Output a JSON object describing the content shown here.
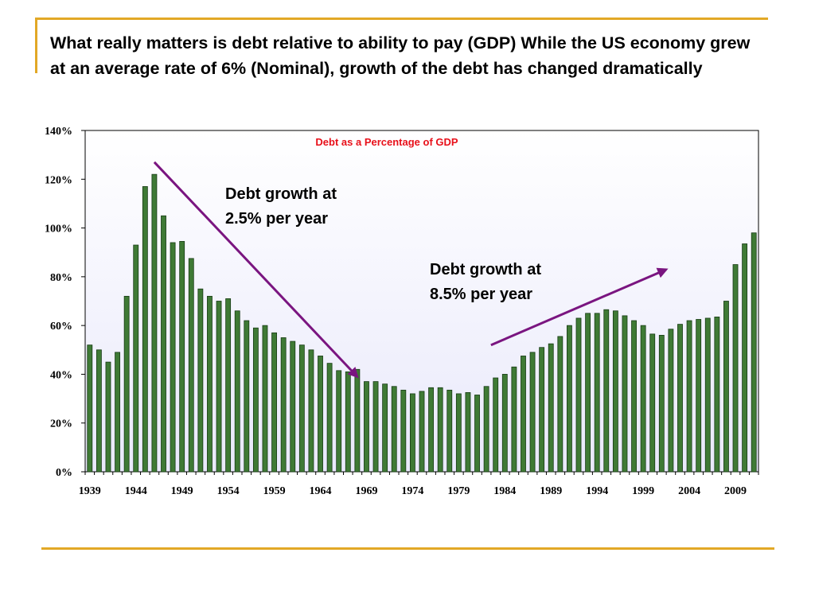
{
  "slide": {
    "title": "What really matters is debt relative to ability to pay (GDP) While the US economy grew at an average rate of 6% (Nominal), growth of the debt has changed dramatically"
  },
  "colors": {
    "accent_rule": "#e2a826",
    "bar_fill": "#3f7a35",
    "bar_stroke": "#173b14",
    "chart_title": "#e8101a",
    "arrow": "#7a1580",
    "plot_bg_top": "#ffffff",
    "plot_bg_bottom": "#e9e9fb"
  },
  "annotations": [
    {
      "lines": [
        "Debt growth at",
        "2.5% per year"
      ],
      "arrow_from_year": 1946,
      "arrow_from_value": 1.27,
      "arrow_to_year": 1968,
      "arrow_to_value": 0.39
    },
    {
      "lines": [
        "Debt growth at",
        "8.5% per year"
      ],
      "arrow_from_year": 1982.5,
      "arrow_from_value": 0.52,
      "arrow_to_year": 2001.5,
      "arrow_to_value": 0.83
    }
  ],
  "chart_data": {
    "type": "bar",
    "title": "Debt as a Percentage of GDP",
    "xlabel": "",
    "ylabel": "",
    "ylim": [
      0,
      1.4
    ],
    "y_ticks": [
      0,
      0.2,
      0.4,
      0.6,
      0.8,
      1.0,
      1.2,
      1.4
    ],
    "y_tick_labels": [
      "0%",
      "20%",
      "40%",
      "60%",
      "80%",
      "100%",
      "120%",
      "140%"
    ],
    "x_tick_labels": [
      "1939",
      "1944",
      "1949",
      "1954",
      "1959",
      "1964",
      "1969",
      "1974",
      "1979",
      "1984",
      "1989",
      "1994",
      "1999",
      "2004",
      "2009"
    ],
    "legend": "none",
    "grid": false,
    "categories": [
      "1939",
      "1940",
      "1941",
      "1942",
      "1943",
      "1944",
      "1945",
      "1946",
      "1947",
      "1948",
      "1949",
      "1950",
      "1951",
      "1952",
      "1953",
      "1954",
      "1955",
      "1956",
      "1957",
      "1958",
      "1959",
      "1960",
      "1961",
      "1962",
      "1963",
      "1964",
      "1965",
      "1966",
      "1967",
      "1968",
      "1969",
      "1970",
      "1971",
      "1972",
      "1973",
      "1974",
      "1975",
      "1976",
      "1977",
      "1978",
      "1979",
      "1980",
      "1981",
      "1982",
      "1983",
      "1984",
      "1985",
      "1986",
      "1987",
      "1988",
      "1989",
      "1990",
      "1991",
      "1992",
      "1993",
      "1994",
      "1995",
      "1996",
      "1997",
      "1998",
      "1999",
      "2000",
      "2001",
      "2002",
      "2003",
      "2004",
      "2005",
      "2006",
      "2007",
      "2008",
      "2009",
      "2010",
      "2011"
    ],
    "values": [
      0.52,
      0.5,
      0.45,
      0.49,
      0.72,
      0.93,
      1.17,
      1.22,
      1.05,
      0.94,
      0.945,
      0.875,
      0.75,
      0.72,
      0.7,
      0.71,
      0.66,
      0.62,
      0.59,
      0.6,
      0.57,
      0.55,
      0.535,
      0.52,
      0.5,
      0.475,
      0.445,
      0.415,
      0.41,
      0.42,
      0.37,
      0.37,
      0.36,
      0.35,
      0.335,
      0.32,
      0.33,
      0.345,
      0.345,
      0.335,
      0.32,
      0.325,
      0.315,
      0.35,
      0.385,
      0.4,
      0.43,
      0.475,
      0.49,
      0.51,
      0.525,
      0.555,
      0.6,
      0.63,
      0.65,
      0.65,
      0.665,
      0.66,
      0.64,
      0.62,
      0.6,
      0.565,
      0.56,
      0.585,
      0.605,
      0.62,
      0.625,
      0.63,
      0.635,
      0.7,
      0.85,
      0.935,
      0.98
    ]
  }
}
